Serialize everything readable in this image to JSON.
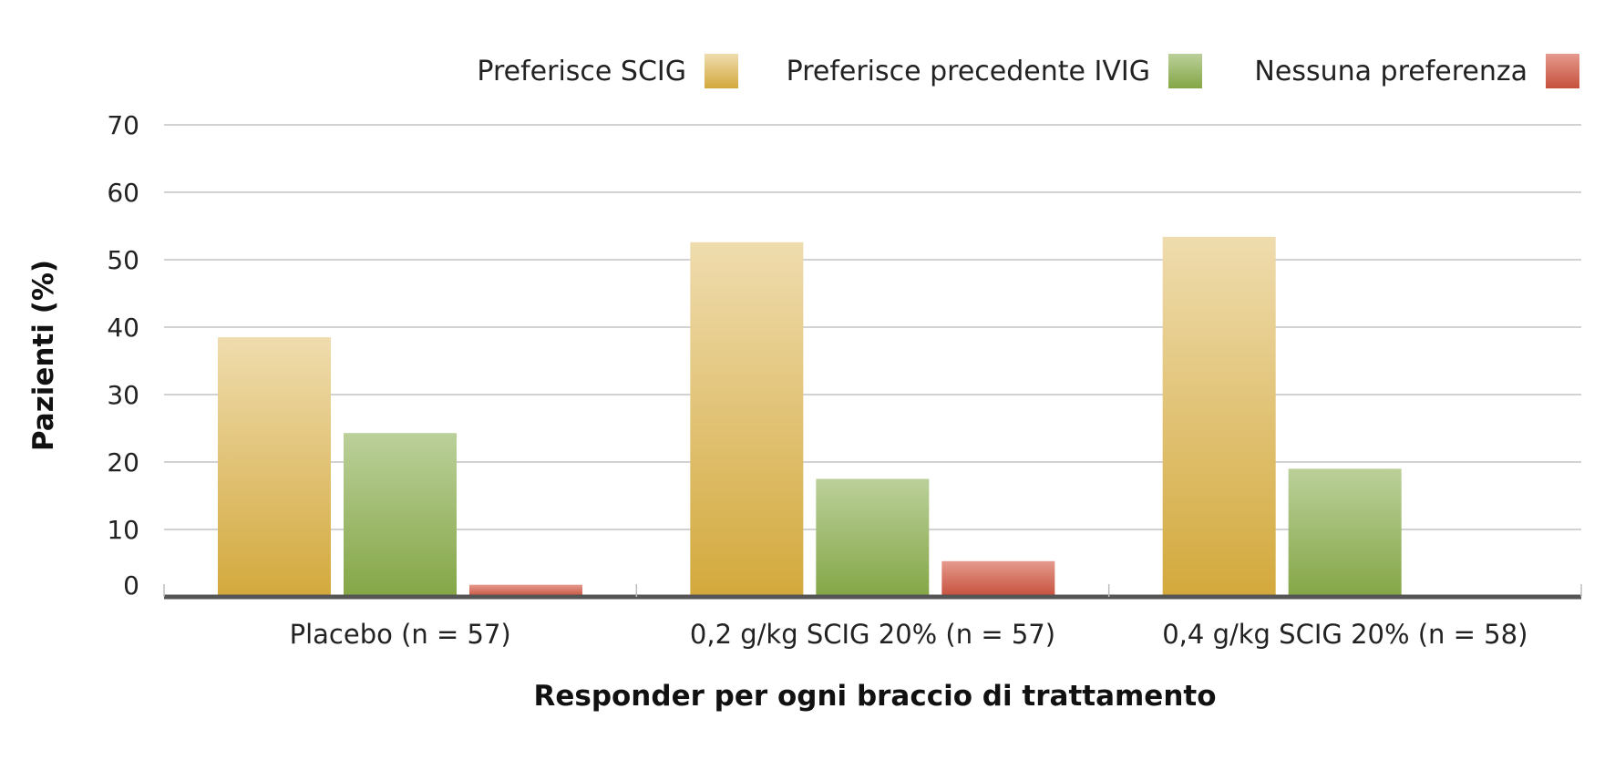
{
  "chart_data": {
    "type": "bar",
    "title": "",
    "xlabel": "Responder per ogni braccio di trattamento",
    "ylabel": "Pazienti (%)",
    "ylim": [
      0,
      70
    ],
    "yticks": [
      0,
      10,
      20,
      30,
      40,
      50,
      60,
      70
    ],
    "grid": true,
    "legend_position": "top-right",
    "categories": [
      "Placebo (n = 57)",
      "0,2 g/kg SCIG 20% (n = 57)",
      "0,4 g/kg SCIG 20% (n = 58)"
    ],
    "series": [
      {
        "name": "Preferisce SCIG",
        "values": [
          38.5,
          52.6,
          53.4
        ],
        "color_top": "#efdcae",
        "color_bottom": "#d3a93c"
      },
      {
        "name": "Preferisce precedente IVIG",
        "values": [
          24.3,
          17.5,
          19.0
        ],
        "color_top": "#bbd09a",
        "color_bottom": "#84a646"
      },
      {
        "name": "Nessuna preferenza",
        "values": [
          1.8,
          5.3,
          0
        ],
        "color_top": "#e59a8d",
        "color_bottom": "#c64f3c"
      }
    ]
  }
}
